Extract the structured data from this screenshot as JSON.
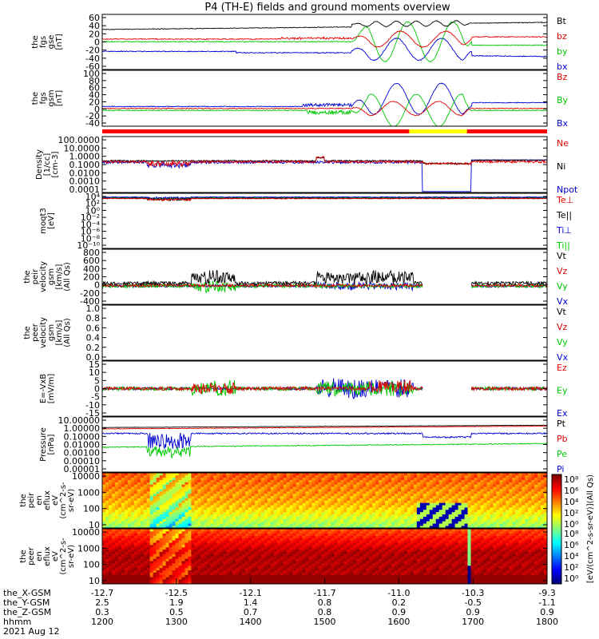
{
  "title": "P4 (TH-E) fields and ground moments overview",
  "colors": {
    "black": "#000000",
    "red": "#e00000",
    "green": "#00c800",
    "blue": "#0000d0"
  },
  "chart_data": [
    {
      "id": "fgs_gse",
      "type": "line",
      "ylabel": [
        "the",
        "fgs",
        "gse",
        "[nT]"
      ],
      "yticks": [
        "60",
        "40",
        "20",
        "0",
        "-20",
        "-40",
        "-60"
      ],
      "ylim": [
        -60,
        65
      ],
      "legend": [
        {
          "label": "Bt",
          "color": "black"
        },
        {
          "label": "bz",
          "color": "red"
        },
        {
          "label": "by",
          "color": "green"
        },
        {
          "label": "bx",
          "color": "blue"
        }
      ]
    },
    {
      "id": "fgs_gsm",
      "type": "line",
      "ylabel": [
        "the",
        "fgs",
        "gsm",
        "[nT]"
      ],
      "yticks": [
        "100",
        "80",
        "60",
        "40",
        "20",
        "0",
        "-20",
        "-40"
      ],
      "ylim": [
        -45,
        100
      ],
      "legend": [
        {
          "label": "Bz",
          "color": "red"
        },
        {
          "label": "By",
          "color": "green"
        },
        {
          "label": "Bx",
          "color": "blue"
        }
      ]
    },
    {
      "id": "density",
      "type": "line",
      "ylabel": [
        "Density",
        "[1/cc]",
        "[cm-3]"
      ],
      "yticks": [
        "100.0000",
        "10.0000",
        "1.0000",
        "0.1000",
        "0.0100",
        "0.0010",
        "0.0001"
      ],
      "log": true,
      "legend": [
        {
          "label": "Ne",
          "color": "red"
        },
        {
          "label": "Ni",
          "color": "black"
        },
        {
          "label": "Npot",
          "color": "blue"
        }
      ]
    },
    {
      "id": "temperature",
      "type": "line",
      "ylabel": [
        "moqt3",
        "[eV]"
      ],
      "yticks": [
        "10⁴",
        "10²",
        "10⁰",
        "10⁻²",
        "10⁻⁴",
        "10⁻⁶",
        "10⁻⁸",
        "10⁻¹⁰"
      ],
      "log": true,
      "legend": [
        {
          "label": "Te⊥",
          "color": "red"
        },
        {
          "label": "Te||",
          "color": "black"
        },
        {
          "label": "Ti⊥",
          "color": "blue"
        },
        {
          "label": "Ti||",
          "color": "green"
        }
      ]
    },
    {
      "id": "peir_velocity",
      "type": "line",
      "ylabel": [
        "the",
        "peir",
        "velocity",
        "gsm",
        "[km/s]",
        "(All Qs)"
      ],
      "yticks": [
        "800",
        "600",
        "400",
        "200",
        "0",
        "-200",
        "-400"
      ],
      "ylim": [
        -400,
        800
      ],
      "legend": [
        {
          "label": "Vt",
          "color": "black"
        },
        {
          "label": "Vz",
          "color": "red"
        },
        {
          "label": "Vy",
          "color": "green"
        },
        {
          "label": "Vx",
          "color": "blue"
        }
      ]
    },
    {
      "id": "peer_velocity",
      "type": "line",
      "ylabel": [
        "the",
        "peer",
        "velocity",
        "gsm",
        "[km/s]",
        "(All Qs)"
      ],
      "yticks": [
        "1.0",
        "0.8",
        "0.6",
        "0.4",
        "0.2",
        "0.0"
      ],
      "ylim": [
        0,
        1
      ],
      "legend": [
        {
          "label": "Vt",
          "color": "black"
        },
        {
          "label": "Vz",
          "color": "red"
        },
        {
          "label": "Vy",
          "color": "green"
        },
        {
          "label": "Vx",
          "color": "blue"
        }
      ]
    },
    {
      "id": "efield",
      "type": "line",
      "ylabel": [
        "E=-VxB",
        "[mV/m]"
      ],
      "yticks": [
        "15",
        "10",
        "5",
        "0",
        "-5",
        "-10",
        "-15"
      ],
      "ylim": [
        -15,
        15
      ],
      "legend": [
        {
          "label": "Ez",
          "color": "red"
        },
        {
          "label": "Ey",
          "color": "green"
        },
        {
          "label": "Ex",
          "color": "blue"
        }
      ]
    },
    {
      "id": "pressure",
      "type": "line",
      "ylabel": [
        "Pressure",
        "[nPa]"
      ],
      "yticks": [
        "10.00000",
        "1.00000",
        "0.10000",
        "0.01000",
        "0.00100",
        "0.00010",
        "0.00001"
      ],
      "log": true,
      "legend": [
        {
          "label": "Pt",
          "color": "black"
        },
        {
          "label": "Pb",
          "color": "red"
        },
        {
          "label": "Pe",
          "color": "green"
        },
        {
          "label": "Pi",
          "color": "blue"
        }
      ]
    },
    {
      "id": "peir_spec",
      "type": "heatmap",
      "ylabel": [
        "the",
        "peir",
        "en",
        "eflux",
        "eV",
        "(cm^2-s-",
        "sr-eV)"
      ],
      "yticks": [
        "10000",
        "1000",
        "100",
        "10"
      ],
      "colorbar_ticks": [
        "10⁸",
        "10⁶",
        "10⁴",
        "10²",
        "10⁰"
      ],
      "colorbar_label": "[eV/(cm^2-s-sr-eV)](All Qs)"
    },
    {
      "id": "peer_spec",
      "type": "heatmap",
      "ylabel": [
        "the",
        "peer",
        "en",
        "eflux",
        "eV",
        "(cm^2-s-",
        "sr-eV)"
      ],
      "yticks": [
        "10000",
        "1000",
        "100",
        "10"
      ],
      "colorbar_ticks": [
        "10⁸",
        "10⁶",
        "10⁴",
        "10²",
        "10⁰"
      ],
      "colorbar_label": "[eV/(cm^2-s-sr-eV)]"
    }
  ],
  "footer": {
    "labels": [
      "the_X-GSM",
      "the_Y-GSM",
      "the_Z-GSM",
      "hhmm",
      "2021 Aug 12"
    ],
    "x_gsm": [
      "-12.7",
      "-12.5",
      "-12.1",
      "-11.7",
      "-11.0",
      "-10.3",
      "-9.3"
    ],
    "y_gsm": [
      "2.5",
      "1.9",
      "1.4",
      "0.8",
      "0.2",
      "-0.5",
      "-1.1"
    ],
    "z_gsm": [
      "0.3",
      "0.5",
      "0.7",
      "0.8",
      "0.9",
      "0.9",
      "0.9"
    ],
    "hhmm": [
      "1200",
      "1300",
      "1400",
      "1500",
      "1600",
      "1700",
      "1800"
    ]
  }
}
